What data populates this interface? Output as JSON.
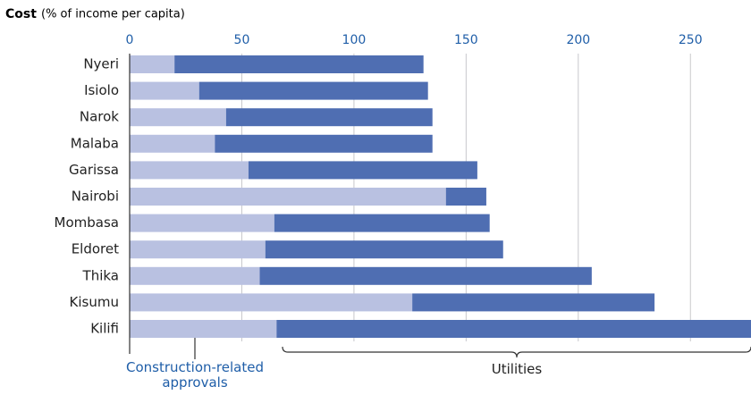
{
  "chart_data": {
    "type": "stacked_bar_horizontal",
    "title": "Cost",
    "subtitle": "(% of income per capita)",
    "categories": [
      "Nyeri",
      "Isiolo",
      "Narok",
      "Malaba",
      "Garissa",
      "Nairobi",
      "Mombasa",
      "Eldoret",
      "Thika",
      "Kisumu",
      "Kilifi"
    ],
    "series": [
      {
        "name": "Construction-related approvals",
        "color": "#b9c1e1",
        "values": [
          20,
          31,
          43,
          38,
          53,
          141,
          64.5,
          60.5,
          58,
          126,
          65.5
        ]
      },
      {
        "name": "Utilities",
        "color": "#4f6eb2",
        "values": [
          111,
          102,
          92,
          97,
          102,
          18,
          96,
          106,
          148,
          108,
          211.5
        ]
      }
    ],
    "xlim": [
      0,
      277
    ],
    "xticks": [
      0,
      50,
      100,
      150,
      200,
      250
    ],
    "grid": true
  }
}
